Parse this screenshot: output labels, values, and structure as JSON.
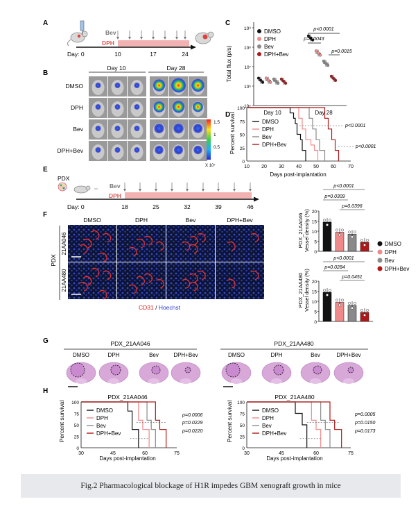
{
  "panels": {
    "A": "A",
    "B": "B",
    "C": "C",
    "D": "D",
    "E": "E",
    "F": "F",
    "G": "G",
    "H": "H"
  },
  "timelineA": {
    "bev": "Bev",
    "dph": "DPH",
    "day_prefix": "Day: 0",
    "days": [
      "10",
      "17",
      "24"
    ]
  },
  "panelB": {
    "col1": "Day 10",
    "col2": "Day 28",
    "rows": [
      "DMSO",
      "DPH",
      "Bev",
      "DPH+Bev"
    ],
    "scale_ticks": [
      "1.5",
      "1",
      "0.5"
    ],
    "scale_unit": "X 10⁷"
  },
  "panelC": {
    "ylabel": "Total flux (p/s)",
    "yticks": [
      "10⁹",
      "10⁸",
      "10⁷",
      "10⁶",
      "10⁵"
    ],
    "xticks": [
      "Day 10",
      "Day 28"
    ],
    "pvals": [
      "p<0.0001",
      "p=0.0043",
      "p=0.0015"
    ],
    "legend": [
      "DMSO",
      "DPH",
      "Bev",
      "DPH+Bev"
    ]
  },
  "panelD": {
    "ylabel": "Percent survival",
    "xlabel": "Days post-implantation",
    "yticks": [
      "100",
      "75",
      "50",
      "25",
      "0"
    ],
    "xticks": [
      "10",
      "20",
      "30",
      "40",
      "50",
      "60",
      "70"
    ],
    "legend": [
      "DMSO",
      "DPH",
      "Bev",
      "DPH+Bev"
    ],
    "pvals": [
      "p<0.0001",
      "p<0.0001"
    ]
  },
  "timelineE": {
    "pdx": "PDX",
    "bev": "Bev",
    "dph": "DPH",
    "day_prefix": "Day: 0",
    "days": [
      "18",
      "25",
      "32",
      "39",
      "46"
    ]
  },
  "panelF": {
    "cols": [
      "DMSO",
      "DPH",
      "Bev",
      "DPH+Bev"
    ],
    "group_label": "PDX",
    "row_labels": [
      "21AA046",
      "21AA480"
    ],
    "stain_red": "CD31",
    "stain_sep": " / ",
    "stain_blue": "Hoechst",
    "plot1_ylabel1": "PDX_21AA046",
    "plot2_ylabel1": "PDX_21AA480",
    "ylabel2": "Vessel density (%)",
    "yticks": [
      "20",
      "15",
      "10",
      "5",
      "0"
    ],
    "plot1_pvals": [
      "p<0.0001",
      "p=0.0309",
      "p=0.0396"
    ],
    "plot2_pvals": [
      "p<0.0001",
      "p=0.0284",
      "p=0.0451"
    ],
    "legend": [
      "DMSO",
      "DPH",
      "Bev",
      "DPH+Bev"
    ]
  },
  "panelG": {
    "title1": "PDX_21AA046",
    "title2": "PDX_21AA480",
    "labels": [
      "DMSO",
      "DPH",
      "Bev",
      "DPH+Bev"
    ]
  },
  "panelH": {
    "title1": "PDX_21AA046",
    "title2": "PDX_21AA480",
    "ylabel": "Percent survival",
    "xlabel": "Days post-implantation",
    "yticks": [
      "100",
      "75",
      "50",
      "25",
      "0"
    ],
    "xticks": [
      "30",
      "45",
      "60",
      "75"
    ],
    "legend": [
      "DMSO",
      "DPH",
      "Bev",
      "DPH+Bev"
    ],
    "pvals1": [
      "p=0.0006",
      "p=0.0229",
      "p=0.0220"
    ],
    "pvals2": [
      "p=0.0005",
      "p=0.0150",
      "p=0.0173"
    ]
  },
  "colors": {
    "dmso": "#111111",
    "dph": "#f08a8a",
    "bev": "#8a8a8a",
    "combo": "#b01818",
    "timeline": "#f3b2b2"
  },
  "chart_data": [
    {
      "type": "scatter",
      "ylabel": "Total flux (p/s)",
      "log_scale": true,
      "categories": [
        "Day 10",
        "Day 28"
      ],
      "series": [
        {
          "name": "DMSO",
          "values": [
            2000000,
            300000000
          ]
        },
        {
          "name": "DPH",
          "values": [
            2000000,
            50000000
          ]
        },
        {
          "name": "Bev",
          "values": [
            1800000,
            15000000
          ]
        },
        {
          "name": "DPH+Bev",
          "values": [
            1800000,
            2500000
          ]
        }
      ]
    },
    {
      "type": "line",
      "ylabel": "Percent survival",
      "xlabel": "Days post-implantation",
      "xlim": [
        10,
        70
      ],
      "ylim": [
        0,
        100
      ],
      "series": [
        {
          "name": "DMSO",
          "x": [
            10,
            34,
            35,
            37,
            38,
            39,
            41,
            42,
            44
          ],
          "y": [
            100,
            100,
            90,
            80,
            70,
            50,
            40,
            20,
            0
          ]
        },
        {
          "name": "DPH",
          "x": [
            10,
            38,
            40,
            42,
            44,
            47,
            49,
            51
          ],
          "y": [
            100,
            100,
            80,
            60,
            40,
            30,
            20,
            0
          ]
        },
        {
          "name": "Bev",
          "x": [
            10,
            43,
            46,
            48,
            50,
            52,
            55
          ],
          "y": [
            100,
            100,
            80,
            60,
            40,
            20,
            0
          ]
        },
        {
          "name": "DPH+Bev",
          "x": [
            10,
            52,
            55,
            57,
            59,
            61,
            63
          ],
          "y": [
            100,
            100,
            80,
            60,
            40,
            20,
            0
          ]
        }
      ]
    },
    {
      "type": "bar",
      "ylabel": "PDX_21AA046 Vessel density (%)",
      "categories": [
        "DMSO",
        "DPH",
        "Bev",
        "DPH+Bev"
      ],
      "values": [
        14.5,
        9.5,
        8.5,
        4.5
      ],
      "ylim": [
        0,
        20
      ]
    },
    {
      "type": "bar",
      "ylabel": "PDX_21AA480 Vessel density (%)",
      "categories": [
        "DMSO",
        "DPH",
        "Bev",
        "DPH+Bev"
      ],
      "values": [
        14.5,
        9.5,
        8.0,
        4.5
      ],
      "ylim": [
        0,
        20
      ]
    },
    {
      "type": "line",
      "title": "PDX_21AA046",
      "ylabel": "Percent survival",
      "xlabel": "Days post-implantation",
      "xlim": [
        30,
        75
      ],
      "ylim": [
        0,
        100
      ],
      "series": [
        {
          "name": "DMSO",
          "x": [
            30,
            50,
            52,
            54,
            57
          ],
          "y": [
            100,
            100,
            80,
            40,
            0
          ]
        },
        {
          "name": "DPH",
          "x": [
            30,
            54,
            57,
            59,
            62
          ],
          "y": [
            100,
            100,
            60,
            40,
            0
          ]
        },
        {
          "name": "Bev",
          "x": [
            30,
            58,
            61,
            63,
            65
          ],
          "y": [
            100,
            100,
            60,
            40,
            0
          ]
        },
        {
          "name": "DPH+Bev",
          "x": [
            30,
            62,
            65,
            67,
            70
          ],
          "y": [
            100,
            100,
            60,
            40,
            0
          ]
        }
      ]
    },
    {
      "type": "line",
      "title": "PDX_21AA480",
      "ylabel": "Percent survival",
      "xlabel": "Days post-implantation",
      "xlim": [
        30,
        75
      ],
      "ylim": [
        0,
        100
      ],
      "series": [
        {
          "name": "DMSO",
          "x": [
            30,
            49,
            51,
            54,
            56
          ],
          "y": [
            100,
            100,
            75,
            50,
            0
          ]
        },
        {
          "name": "DPH",
          "x": [
            30,
            55,
            58,
            60,
            62
          ],
          "y": [
            100,
            100,
            60,
            40,
            0
          ]
        },
        {
          "name": "Bev",
          "x": [
            30,
            59,
            62,
            64,
            66
          ],
          "y": [
            100,
            100,
            60,
            40,
            0
          ]
        },
        {
          "name": "DPH+Bev",
          "x": [
            30,
            63,
            66,
            68,
            71
          ],
          "y": [
            100,
            100,
            60,
            40,
            0
          ]
        }
      ]
    }
  ],
  "caption": "Fig.2 Pharmacological blockage of H1R impedes GBM xenograft growth in mice"
}
